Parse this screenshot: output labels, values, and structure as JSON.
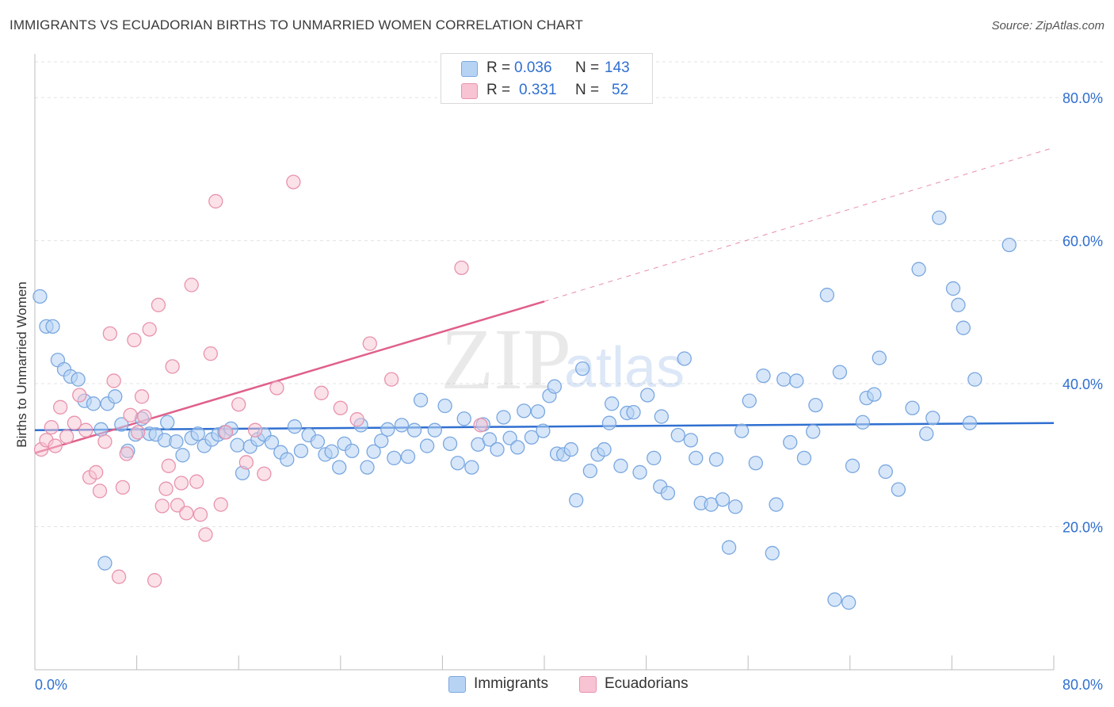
{
  "header": {
    "title": "IMMIGRANTS VS ECUADORIAN BIRTHS TO UNMARRIED WOMEN CORRELATION CHART",
    "source": "Source: ZipAtlas.com"
  },
  "legend": {
    "r_label": "R =",
    "n_label": "N =",
    "immigrants": {
      "r": "0.036",
      "n": "143",
      "name": "Immigrants"
    },
    "ecuadorians": {
      "r": "0.331",
      "n": "52",
      "name": "Ecuadorians"
    }
  },
  "watermark": {
    "zip": "ZIP",
    "atlas": "atlas"
  },
  "colors": {
    "immigrants_fill": "#b7d3f4",
    "immigrants_stroke": "#7aa7e0",
    "immigrants_line": "#2f6fd0",
    "ecuadorians_fill": "#f8c3d2",
    "ecuadorians_stroke": "#e893ad",
    "ecuadorians_line": "#e0608a",
    "tick_label": "#2f6fd0",
    "grid": "#e3e3e3"
  },
  "chart_data": {
    "type": "scatter",
    "title": "IMMIGRANTS VS ECUADORIAN BIRTHS TO UNMARRIED WOMEN CORRELATION CHART",
    "xlabel": "",
    "ylabel": "Births to Unmarried Women",
    "xlim": [
      0,
      80
    ],
    "ylim": [
      0,
      85
    ],
    "x_tick_labels": [
      "0.0%",
      "80.0%"
    ],
    "y_ticks": [
      20,
      40,
      60,
      80
    ],
    "y_tick_labels": [
      "20.0%",
      "40.0%",
      "60.0%",
      "80.0%"
    ],
    "grid": true,
    "legend_position": "top-center",
    "series": [
      {
        "name": "Immigrants",
        "trend": {
          "x0": 0,
          "y0": 33.5,
          "x1": 80,
          "y1": 34.5,
          "dashed_after": null
        },
        "points": [
          [
            0.4,
            52.2
          ],
          [
            0.9,
            48.0
          ],
          [
            1.4,
            48.0
          ],
          [
            1.8,
            43.3
          ],
          [
            2.3,
            42.0
          ],
          [
            2.8,
            41.0
          ],
          [
            3.4,
            40.6
          ],
          [
            3.9,
            37.6
          ],
          [
            4.6,
            37.2
          ],
          [
            5.2,
            33.6
          ],
          [
            5.7,
            37.2
          ],
          [
            6.3,
            38.2
          ],
          [
            6.8,
            34.3
          ],
          [
            7.3,
            30.6
          ],
          [
            7.9,
            32.9
          ],
          [
            8.4,
            35.1
          ],
          [
            9.0,
            33.0
          ],
          [
            9.5,
            32.9
          ],
          [
            10.2,
            32.1
          ],
          [
            10.4,
            34.6
          ],
          [
            11.1,
            31.9
          ],
          [
            11.6,
            30.0
          ],
          [
            12.3,
            32.4
          ],
          [
            12.8,
            33.0
          ],
          [
            13.3,
            31.3
          ],
          [
            13.9,
            32.2
          ],
          [
            14.4,
            32.9
          ],
          [
            14.9,
            33.2
          ],
          [
            15.4,
            33.7
          ],
          [
            15.9,
            31.4
          ],
          [
            16.3,
            27.5
          ],
          [
            16.9,
            31.2
          ],
          [
            17.5,
            32.2
          ],
          [
            18.0,
            32.9
          ],
          [
            18.6,
            31.8
          ],
          [
            19.3,
            30.4
          ],
          [
            19.8,
            29.4
          ],
          [
            20.4,
            34.0
          ],
          [
            20.9,
            30.6
          ],
          [
            21.5,
            32.8
          ],
          [
            22.2,
            31.9
          ],
          [
            22.8,
            30.1
          ],
          [
            23.3,
            30.5
          ],
          [
            23.9,
            28.3
          ],
          [
            24.3,
            31.6
          ],
          [
            24.9,
            30.6
          ],
          [
            25.6,
            34.2
          ],
          [
            26.1,
            28.3
          ],
          [
            26.6,
            30.5
          ],
          [
            27.2,
            32.0
          ],
          [
            27.7,
            33.6
          ],
          [
            28.2,
            29.6
          ],
          [
            28.8,
            34.2
          ],
          [
            29.3,
            29.8
          ],
          [
            29.8,
            33.5
          ],
          [
            30.3,
            37.7
          ],
          [
            30.8,
            31.3
          ],
          [
            31.4,
            33.5
          ],
          [
            32.2,
            36.9
          ],
          [
            32.6,
            31.6
          ],
          [
            33.2,
            28.9
          ],
          [
            33.7,
            35.1
          ],
          [
            34.3,
            28.3
          ],
          [
            34.8,
            31.5
          ],
          [
            35.2,
            34.3
          ],
          [
            35.7,
            32.2
          ],
          [
            36.3,
            30.8
          ],
          [
            36.8,
            35.3
          ],
          [
            37.3,
            32.4
          ],
          [
            37.9,
            31.1
          ],
          [
            38.4,
            36.2
          ],
          [
            39.0,
            32.5
          ],
          [
            39.5,
            36.1
          ],
          [
            39.9,
            33.4
          ],
          [
            40.4,
            38.3
          ],
          [
            40.8,
            39.6
          ],
          [
            41.0,
            30.2
          ],
          [
            41.5,
            30.1
          ],
          [
            42.1,
            30.8
          ],
          [
            42.5,
            23.7
          ],
          [
            43.0,
            42.1
          ],
          [
            43.6,
            27.8
          ],
          [
            44.2,
            30.1
          ],
          [
            44.7,
            30.8
          ],
          [
            45.1,
            34.5
          ],
          [
            45.3,
            37.2
          ],
          [
            46.0,
            28.5
          ],
          [
            46.5,
            35.9
          ],
          [
            47.0,
            36.0
          ],
          [
            47.5,
            27.6
          ],
          [
            48.1,
            38.4
          ],
          [
            48.6,
            29.6
          ],
          [
            49.2,
            35.4
          ],
          [
            49.1,
            25.6
          ],
          [
            49.7,
            24.7
          ],
          [
            50.5,
            32.8
          ],
          [
            51.0,
            43.5
          ],
          [
            51.5,
            32.1
          ],
          [
            51.9,
            29.6
          ],
          [
            52.3,
            23.3
          ],
          [
            53.1,
            23.1
          ],
          [
            53.5,
            29.4
          ],
          [
            54.0,
            23.8
          ],
          [
            54.5,
            17.1
          ],
          [
            55.0,
            22.8
          ],
          [
            55.5,
            33.4
          ],
          [
            56.1,
            37.6
          ],
          [
            56.6,
            28.9
          ],
          [
            57.2,
            41.1
          ],
          [
            57.9,
            16.3
          ],
          [
            58.2,
            23.1
          ],
          [
            58.8,
            40.6
          ],
          [
            59.3,
            31.8
          ],
          [
            59.8,
            40.4
          ],
          [
            60.4,
            29.6
          ],
          [
            61.1,
            33.3
          ],
          [
            61.3,
            37.0
          ],
          [
            62.2,
            52.4
          ],
          [
            62.8,
            9.8
          ],
          [
            63.2,
            41.6
          ],
          [
            63.9,
            9.4
          ],
          [
            64.2,
            28.5
          ],
          [
            65.0,
            34.6
          ],
          [
            65.3,
            38.0
          ],
          [
            65.9,
            38.5
          ],
          [
            66.3,
            43.6
          ],
          [
            66.8,
            27.7
          ],
          [
            67.8,
            25.2
          ],
          [
            68.9,
            36.6
          ],
          [
            69.4,
            56.0
          ],
          [
            70.0,
            33.0
          ],
          [
            70.5,
            35.2
          ],
          [
            71.0,
            63.2
          ],
          [
            72.1,
            53.3
          ],
          [
            72.5,
            51.0
          ],
          [
            72.9,
            47.8
          ],
          [
            73.4,
            34.5
          ],
          [
            73.8,
            40.6
          ],
          [
            76.5,
            59.4
          ],
          [
            5.5,
            14.9
          ]
        ]
      },
      {
        "name": "Ecuadorians",
        "trend": {
          "x0": 0,
          "y0": 30.3,
          "x1": 40,
          "y1": 51.5,
          "dashed_x1": 80,
          "dashed_y1": 73.0
        },
        "points": [
          [
            0.5,
            30.8
          ],
          [
            0.9,
            32.1
          ],
          [
            1.3,
            33.9
          ],
          [
            1.6,
            31.3
          ],
          [
            2.0,
            36.7
          ],
          [
            2.5,
            32.6
          ],
          [
            3.1,
            34.5
          ],
          [
            3.5,
            38.4
          ],
          [
            4.0,
            33.5
          ],
          [
            4.3,
            26.9
          ],
          [
            4.8,
            27.6
          ],
          [
            5.1,
            25.0
          ],
          [
            5.5,
            31.9
          ],
          [
            5.9,
            47.0
          ],
          [
            6.2,
            40.4
          ],
          [
            6.6,
            13.0
          ],
          [
            6.9,
            25.5
          ],
          [
            7.2,
            30.2
          ],
          [
            7.5,
            35.6
          ],
          [
            7.8,
            46.1
          ],
          [
            8.1,
            33.2
          ],
          [
            8.4,
            38.2
          ],
          [
            8.6,
            35.4
          ],
          [
            9.0,
            47.6
          ],
          [
            9.4,
            12.5
          ],
          [
            9.7,
            51.0
          ],
          [
            10.0,
            22.9
          ],
          [
            10.3,
            25.3
          ],
          [
            10.5,
            28.5
          ],
          [
            10.8,
            42.4
          ],
          [
            11.2,
            23.0
          ],
          [
            11.5,
            26.1
          ],
          [
            11.9,
            21.9
          ],
          [
            12.3,
            53.8
          ],
          [
            12.7,
            26.3
          ],
          [
            13.0,
            21.7
          ],
          [
            13.4,
            18.9
          ],
          [
            13.8,
            44.2
          ],
          [
            14.2,
            65.5
          ],
          [
            14.6,
            23.1
          ],
          [
            15.0,
            33.2
          ],
          [
            16.0,
            37.1
          ],
          [
            16.6,
            29.0
          ],
          [
            17.3,
            33.5
          ],
          [
            18.0,
            27.4
          ],
          [
            19.0,
            39.4
          ],
          [
            20.3,
            68.2
          ],
          [
            22.5,
            38.7
          ],
          [
            24.0,
            36.6
          ],
          [
            25.3,
            35.0
          ],
          [
            26.3,
            45.6
          ],
          [
            28.0,
            40.6
          ],
          [
            33.5,
            56.2
          ],
          [
            35.0,
            34.2
          ]
        ]
      }
    ]
  }
}
